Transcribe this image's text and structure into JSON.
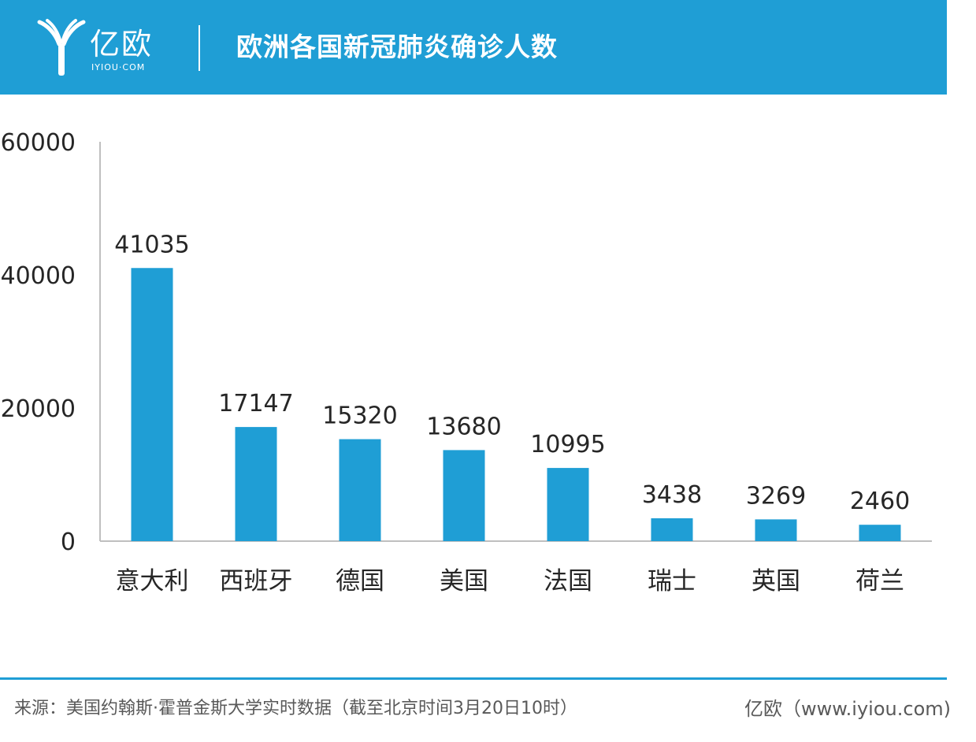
{
  "header": {
    "logo_text": "亿欧",
    "logo_domain": "IYIOU·COM",
    "title": "欧洲各国新冠肺炎确诊人数"
  },
  "colors": {
    "brand": "#1f9ed5",
    "bar": "#1f9ed5",
    "axis": "#bfbfbf",
    "text": "#262626",
    "footer_text": "#595959"
  },
  "chart_data": {
    "type": "bar",
    "categories": [
      "意大利",
      "西班牙",
      "德国",
      "美国",
      "法国",
      "瑞士",
      "英国",
      "荷兰"
    ],
    "values": [
      41035,
      17147,
      15320,
      13680,
      10995,
      3438,
      3269,
      2460
    ],
    "data_labels": [
      "41035",
      "17147",
      "15320",
      "13680",
      "10995",
      "3438",
      "3269",
      "2460"
    ],
    "yticks": [
      "0",
      "20000",
      "40000",
      "60000"
    ],
    "ylim": [
      0,
      60000
    ],
    "grid": false,
    "legend": "none"
  },
  "footer": {
    "source": "来源：美国约翰斯·霍普金斯大学实时数据（截至北京时间3月20日10时）",
    "credit": "亿欧（www.iyiou.com)"
  }
}
